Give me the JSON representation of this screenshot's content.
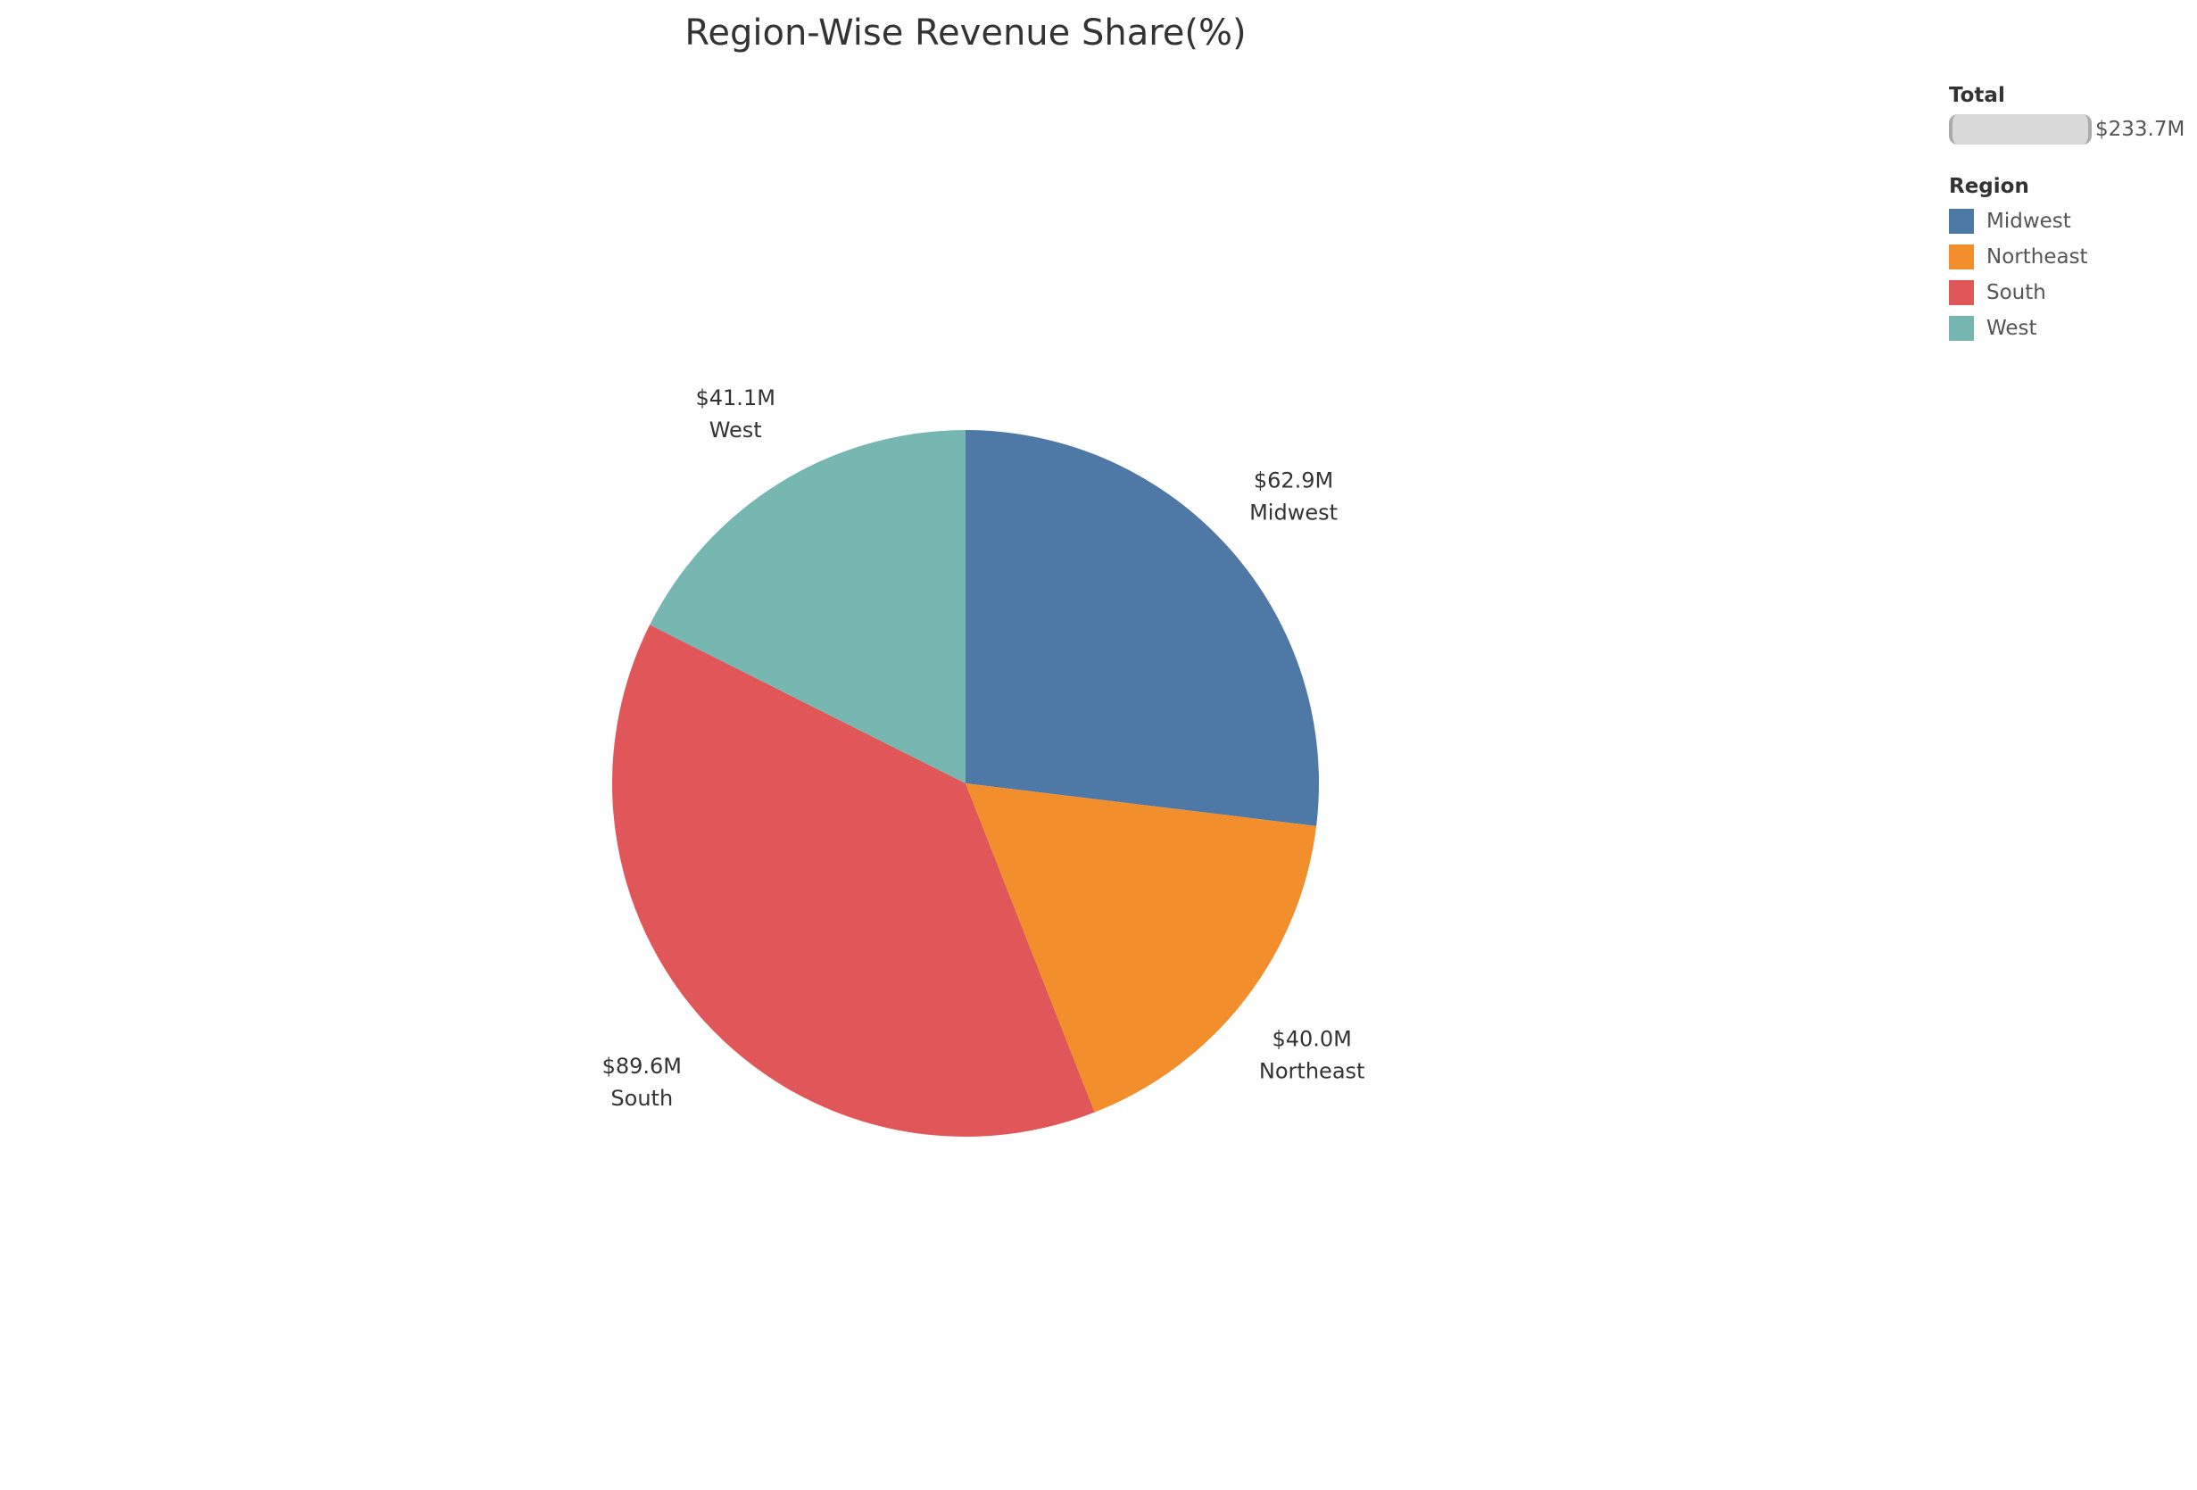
{
  "chart_data": {
    "type": "pie",
    "title": "Region-Wise Revenue Share(%)",
    "slices": [
      {
        "name": "Midwest",
        "value": 62.9,
        "label": "$62.9M",
        "color": "#4e79a7"
      },
      {
        "name": "Northeast",
        "value": 40.0,
        "label": "$40.0M",
        "color": "#f28e2b"
      },
      {
        "name": "South",
        "value": 89.6,
        "label": "$89.6M",
        "color": "#e15759"
      },
      {
        "name": "West",
        "value": 41.1,
        "label": "$41.1M",
        "color": "#76b7b2"
      }
    ],
    "unit": "$M",
    "start_angle": "12 o'clock",
    "direction": "clockwise"
  },
  "legend": {
    "total_heading": "Total",
    "total_value": "$233.7M",
    "region_heading": "Region",
    "placement": "top-right",
    "items": [
      {
        "label": "Midwest",
        "color": "#4e79a7"
      },
      {
        "label": "Northeast",
        "color": "#f28e2b"
      },
      {
        "label": "South",
        "color": "#e15759"
      },
      {
        "label": "West",
        "color": "#76b7b2"
      }
    ]
  }
}
